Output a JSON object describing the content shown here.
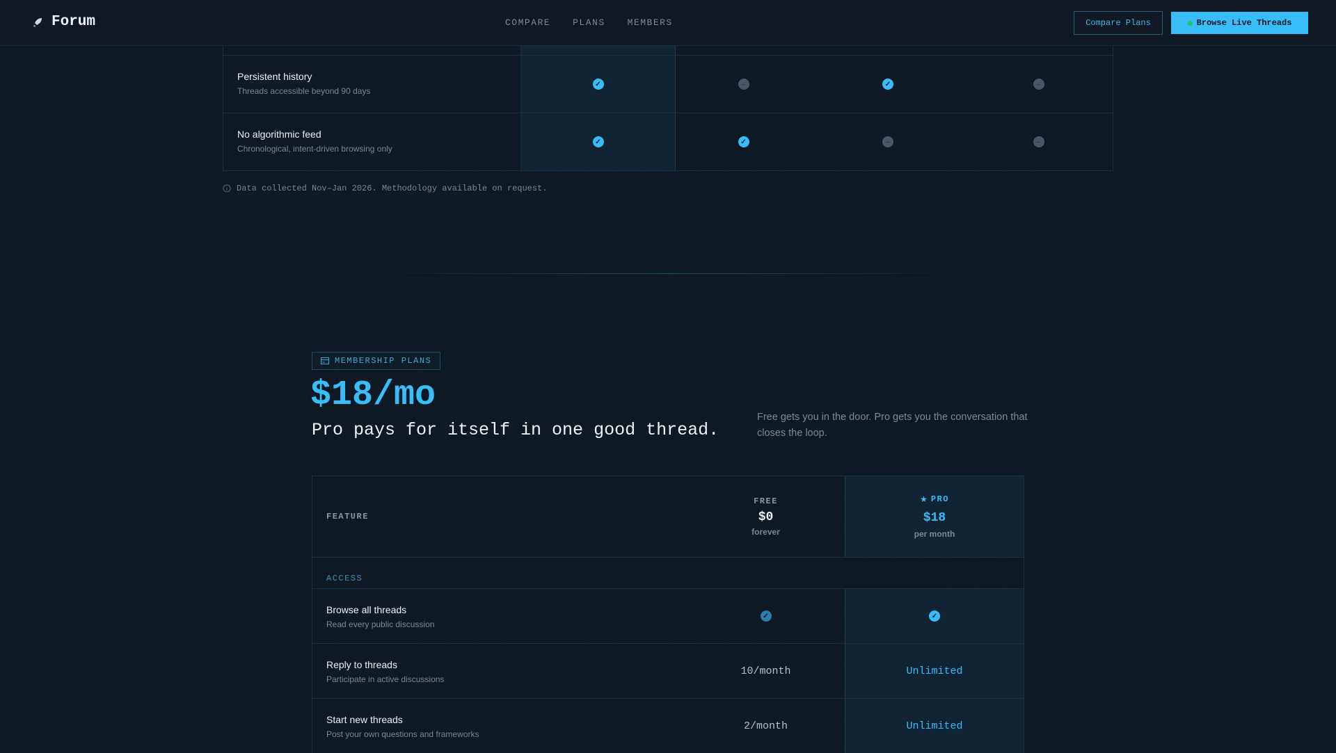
{
  "header": {
    "brand": "Forum",
    "logo_icon": "rocket-icon",
    "nav": [
      "COMPARE",
      "PLANS",
      "MEMBERS"
    ],
    "compare_button": "Compare Plans",
    "browse_button": "Browse Live Threads"
  },
  "comparison": {
    "rows": [
      {
        "title": "Persistent history",
        "desc": "Threads accessible beyond 90 days",
        "cells": [
          "yes",
          "no",
          "yes",
          "no"
        ]
      },
      {
        "title": "No algorithmic feed",
        "desc": "Chronological, intent-driven browsing only",
        "cells": [
          "yes",
          "yes",
          "no",
          "no"
        ]
      }
    ],
    "footnote": "Data collected Nov–Jan 2026. Methodology available on request."
  },
  "plans": {
    "badge": "MEMBERSHIP PLANS",
    "price": "$18/mo",
    "tagline": "Pro pays for itself in one good thread.",
    "lede": "Free gets you in the door. Pro gets you the conversation that closes the loop.",
    "table": {
      "feature_header": "FEATURE",
      "free": {
        "name": "FREE",
        "price": "$0",
        "period": "forever"
      },
      "pro": {
        "name": "PRO",
        "price": "$18",
        "period": "per month"
      },
      "section": "ACCESS",
      "rows": [
        {
          "title": "Browse all threads",
          "desc": "Read every public discussion",
          "free": "check",
          "pro": "check"
        },
        {
          "title": "Reply to threads",
          "desc": "Participate in active discussions",
          "free": "10/month",
          "pro": "Unlimited"
        },
        {
          "title": "Start new threads",
          "desc": "Post your own questions and frameworks",
          "free": "2/month",
          "pro": "Unlimited"
        }
      ]
    }
  },
  "colors": {
    "accent": "#38bdf8",
    "background": "#0f1923",
    "live": "#22c55e"
  }
}
